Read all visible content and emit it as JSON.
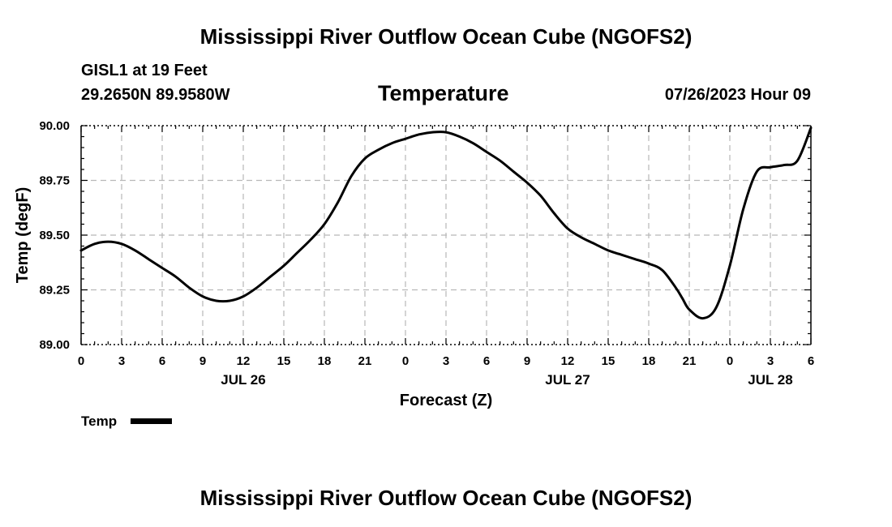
{
  "page": {
    "title": "Mississippi River Outflow Ocean Cube (NGOFS2)",
    "station": "GISL1 at 19 Feet",
    "coordinates": "29.2650N  89.9580W",
    "subtitle": "Temperature",
    "datetime": "07/26/2023 Hour 09",
    "legend_label": "Temp",
    "bottom_title": "Mississippi River Outflow Ocean Cube (NGOFS2)"
  },
  "chart_data": {
    "type": "line",
    "title": "Temperature",
    "xlabel": "Forecast (Z)",
    "ylabel": "Temp (degF)",
    "xlim": [
      0,
      54
    ],
    "ylim": [
      89.0,
      90.0
    ],
    "x_ticks": [
      0,
      3,
      6,
      9,
      12,
      15,
      18,
      21,
      24,
      27,
      30,
      33,
      36,
      39,
      42,
      45,
      48,
      51,
      54
    ],
    "x_tick_labels": [
      "0",
      "3",
      "6",
      "9",
      "12",
      "15",
      "18",
      "21",
      "0",
      "3",
      "6",
      "9",
      "12",
      "15",
      "18",
      "21",
      "0",
      "3",
      "6"
    ],
    "y_ticks": [
      89.0,
      89.25,
      89.5,
      89.75,
      90.0
    ],
    "y_tick_labels": [
      "89.00",
      "89.25",
      "89.50",
      "89.75",
      "90.00"
    ],
    "date_labels": [
      {
        "x": 12,
        "label": "JUL 26"
      },
      {
        "x": 36,
        "label": "JUL 27"
      },
      {
        "x": 51,
        "label": "JUL 28"
      }
    ],
    "grid": true,
    "legend": "bottom-left",
    "series": [
      {
        "name": "Temp",
        "color": "#000000",
        "x": [
          0,
          1,
          2,
          3,
          4,
          5,
          6,
          7,
          8,
          9,
          10,
          11,
          12,
          13,
          14,
          15,
          16,
          17,
          18,
          19,
          20,
          21,
          22,
          23,
          24,
          25,
          26,
          27,
          28,
          29,
          30,
          31,
          32,
          33,
          34,
          35,
          36,
          37,
          38,
          39,
          40,
          41,
          42,
          43,
          44,
          44.5,
          45,
          46,
          47,
          48,
          49,
          50,
          51,
          52,
          53,
          54
        ],
        "values": [
          89.43,
          89.46,
          89.47,
          89.46,
          89.43,
          89.39,
          89.35,
          89.31,
          89.26,
          89.22,
          89.2,
          89.2,
          89.22,
          89.26,
          89.31,
          89.36,
          89.42,
          89.48,
          89.55,
          89.65,
          89.77,
          89.85,
          89.89,
          89.92,
          89.94,
          89.96,
          89.97,
          89.97,
          89.95,
          89.92,
          89.88,
          89.84,
          89.79,
          89.74,
          89.68,
          89.6,
          89.53,
          89.49,
          89.46,
          89.43,
          89.41,
          89.39,
          89.37,
          89.34,
          89.26,
          89.21,
          89.16,
          89.12,
          89.17,
          89.36,
          89.62,
          89.79,
          89.81,
          89.82,
          89.84,
          89.99
        ]
      }
    ]
  }
}
